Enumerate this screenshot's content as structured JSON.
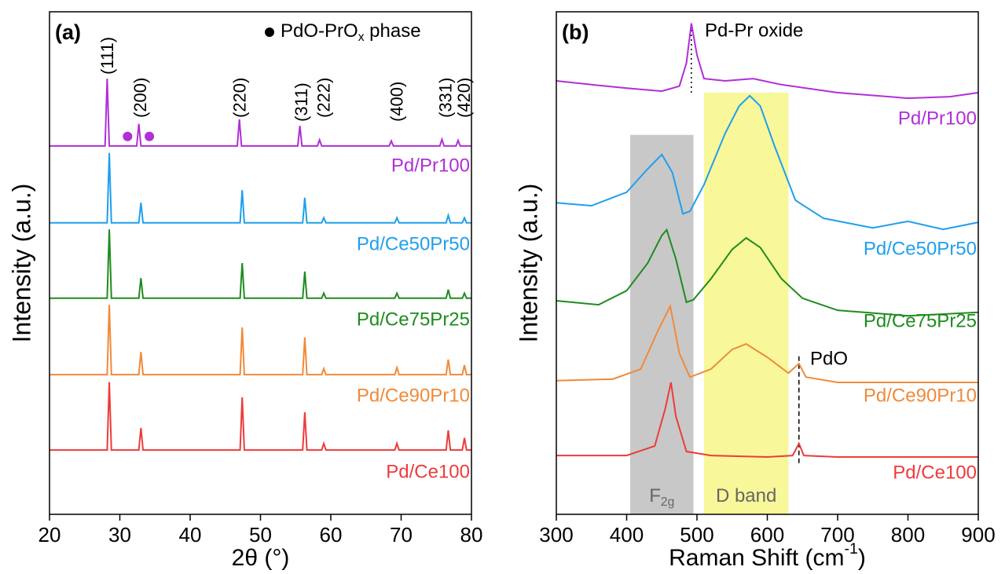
{
  "chart_data": [
    {
      "type": "line",
      "title": "(a)",
      "xlabel": "2θ (°)",
      "ylabel": "Intensity (a.u.)",
      "xlim": [
        20,
        80
      ],
      "xticks": [
        20,
        30,
        40,
        50,
        60,
        70,
        80
      ],
      "ylim": [
        0,
        100
      ],
      "legend_label": {
        "text": "PdO-PrO",
        "sub": "x",
        "tail": " phase"
      },
      "markers": {
        "color": "#b02fd6",
        "x": [
          31.1,
          34.2
        ],
        "values": [
          75.2,
          75.2
        ]
      },
      "peak_labels": [
        {
          "text": "(111)",
          "x": 28.4
        },
        {
          "text": "(200)",
          "x": 33.1
        },
        {
          "text": "(220)",
          "x": 47.2
        },
        {
          "text": "(311)",
          "x": 56
        },
        {
          "text": "(222)",
          "x": 59.2
        },
        {
          "text": "(400)",
          "x": 69.6
        },
        {
          "text": "(331)",
          "x": 76.5
        },
        {
          "text": "(420)",
          "x": 79.1
        }
      ],
      "series": [
        {
          "name": "Pd/Pr100",
          "color": "#b02fd6",
          "x": [
            20,
            27.9,
            28.2,
            28.5,
            32.4,
            32.7,
            33.0,
            46.7,
            47.0,
            47.3,
            55.3,
            55.6,
            55.9,
            58.1,
            58.4,
            58.7,
            68.3,
            68.6,
            68.9,
            75.5,
            75.8,
            76.1,
            77.8,
            78.1,
            78.4,
            80
          ],
          "values": [
            73.3,
            73.3,
            86.7,
            73.3,
            73.3,
            77.7,
            73.3,
            73.3,
            78.6,
            73.3,
            73.3,
            77.3,
            73.3,
            73.3,
            74.5,
            73.3,
            73.3,
            74.3,
            73.3,
            73.3,
            74.6,
            73.3,
            73.3,
            74.4,
            73.3,
            73.3
          ]
        },
        {
          "name": "Pd/Ce50Pr50",
          "color": "#1f9fee",
          "x": [
            20,
            28.2,
            28.5,
            28.8,
            32.7,
            33.0,
            33.3,
            47.1,
            47.4,
            47.7,
            56.0,
            56.3,
            56.6,
            58.7,
            59.0,
            59.3,
            69.1,
            69.4,
            69.7,
            76.4,
            76.7,
            77.0,
            78.7,
            79.0,
            79.3,
            80
          ],
          "values": [
            58,
            58,
            71.9,
            58,
            58,
            62,
            58,
            58,
            64.5,
            58,
            58,
            63,
            58,
            58,
            59,
            58,
            58,
            59,
            58,
            58,
            59.5,
            58,
            58,
            59,
            58,
            58
          ]
        },
        {
          "name": "Pd/Ce75Pr25",
          "color": "#1e8c1e",
          "x": [
            20,
            28.2,
            28.5,
            28.8,
            32.7,
            33.0,
            33.3,
            47.1,
            47.4,
            47.7,
            56.0,
            56.3,
            56.6,
            58.7,
            59.0,
            59.3,
            69.1,
            69.4,
            69.7,
            76.4,
            76.7,
            77.0,
            78.7,
            79.0,
            79.3,
            80
          ],
          "values": [
            43,
            43,
            56.7,
            43,
            43,
            47,
            43,
            43,
            50,
            43,
            43,
            48.3,
            43,
            43,
            44,
            43,
            43,
            44,
            43,
            43,
            44.7,
            43,
            43,
            44,
            43,
            43
          ]
        },
        {
          "name": "Pd/Ce90Pr10",
          "color": "#f08a3a",
          "x": [
            20,
            28.2,
            28.5,
            28.8,
            32.7,
            33.0,
            33.3,
            47.1,
            47.4,
            47.7,
            56.0,
            56.3,
            56.6,
            58.7,
            59.0,
            59.3,
            69.1,
            69.4,
            69.7,
            76.4,
            76.7,
            77.0,
            78.7,
            79.0,
            79.3,
            80
          ],
          "values": [
            27.8,
            27.8,
            41.7,
            27.8,
            27.8,
            32.3,
            27.8,
            27.8,
            37.2,
            27.8,
            27.8,
            35.2,
            27.8,
            27.8,
            29,
            27.8,
            27.8,
            29.2,
            27.8,
            27.8,
            30.8,
            27.8,
            27.8,
            29.7,
            27.8,
            27.8
          ]
        },
        {
          "name": "Pd/Ce100",
          "color": "#ee3b3b",
          "x": [
            20,
            28.2,
            28.5,
            28.8,
            32.7,
            33.0,
            33.3,
            47.1,
            47.4,
            47.7,
            56.0,
            56.3,
            56.6,
            58.7,
            59.0,
            59.3,
            69.1,
            69.4,
            69.7,
            76.4,
            76.7,
            77.0,
            78.7,
            79.0,
            79.3,
            80
          ],
          "values": [
            12.8,
            12.8,
            26.3,
            12.8,
            12.8,
            17.2,
            12.8,
            12.8,
            23.3,
            12.8,
            12.8,
            20.3,
            12.8,
            12.8,
            14.1,
            12.8,
            12.8,
            14.1,
            12.8,
            12.8,
            16.7,
            12.8,
            12.8,
            15.2,
            12.8,
            12.8
          ]
        }
      ]
    },
    {
      "type": "line",
      "title": "(b)",
      "xlabel": {
        "text": "Raman Shift (cm",
        "sup": "-1",
        "tail": ")"
      },
      "ylabel": "Intensity (a.u.)",
      "xlim": [
        300,
        900
      ],
      "xticks": [
        300,
        400,
        500,
        600,
        700,
        800,
        900
      ],
      "ylim": [
        0,
        100
      ],
      "bands": [
        {
          "label": {
            "text": "F",
            "sub": "2g"
          },
          "xlim": [
            405,
            495
          ],
          "top": 75.5,
          "color": "#c8c8c8"
        },
        {
          "label": {
            "text": "D band"
          },
          "xlim": [
            510,
            630
          ],
          "top": 83.9,
          "color": "#f8f89a"
        }
      ],
      "ref_lines": [
        {
          "label": "Pd-Pr oxide",
          "x": 492,
          "ylim": [
            83.9,
            97.7
          ],
          "style": "dotted"
        },
        {
          "label": "PdO",
          "x": 645,
          "ylim": [
            10.2,
            31.7
          ],
          "style": "dashed"
        }
      ],
      "series": [
        {
          "name": "Pd/Pr100",
          "color": "#b02fd6",
          "x": [
            300,
            350,
            400,
            450,
            475,
            485,
            492,
            500,
            510,
            540,
            580,
            620,
            700,
            800,
            860,
            900
          ],
          "values": [
            86.25,
            85.5,
            84.8,
            84.2,
            85.2,
            89.8,
            97.7,
            91.4,
            86.7,
            86.25,
            86.7,
            85.5,
            83.9,
            82.8,
            83.1,
            83.9
          ]
        },
        {
          "name": "Pd/Ce50Pr50",
          "color": "#1f9fee",
          "x": [
            300,
            350,
            400,
            430,
            450,
            465,
            480,
            490,
            510,
            540,
            560,
            575,
            590,
            610,
            640,
            680,
            750,
            800,
            850,
            900
          ],
          "values": [
            62,
            61.4,
            64.1,
            68.75,
            71.6,
            68,
            59.8,
            60.3,
            65.6,
            75.8,
            81.25,
            83.3,
            81.25,
            73.4,
            62.5,
            58.9,
            57,
            58.3,
            56.7,
            58.1
          ]
        },
        {
          "name": "Pd/Ce75Pr25",
          "color": "#1e8c1e",
          "x": [
            300,
            360,
            400,
            430,
            450,
            457,
            470,
            485,
            495,
            520,
            550,
            570,
            590,
            620,
            650,
            700,
            800,
            900
          ],
          "values": [
            42.5,
            41.7,
            44.5,
            50,
            55.5,
            56.6,
            50.8,
            42.2,
            42.7,
            46.9,
            52.7,
            55,
            53.1,
            46.9,
            43,
            40.6,
            39.5,
            40.2
          ]
        },
        {
          "name": "Pd/Ce90Pr10",
          "color": "#f08a3a",
          "x": [
            300,
            380,
            420,
            445,
            462,
            475,
            490,
            520,
            550,
            570,
            600,
            630,
            645,
            655,
            700,
            900
          ],
          "values": [
            26.6,
            26.9,
            28.9,
            36.7,
            41.4,
            32,
            27.3,
            28.9,
            32.8,
            33.9,
            31.25,
            28.1,
            30,
            27.3,
            26.25,
            26.25
          ]
        },
        {
          "name": "Pd/Ce100",
          "color": "#ee3b3b",
          "x": [
            300,
            400,
            440,
            455,
            463,
            470,
            485,
            520,
            600,
            636,
            645,
            652,
            700,
            900
          ],
          "values": [
            11.7,
            11.7,
            13.6,
            21.1,
            26.25,
            19.5,
            12.5,
            11.7,
            11.4,
            11.7,
            14.1,
            11.7,
            11.4,
            11.4
          ]
        }
      ]
    }
  ]
}
